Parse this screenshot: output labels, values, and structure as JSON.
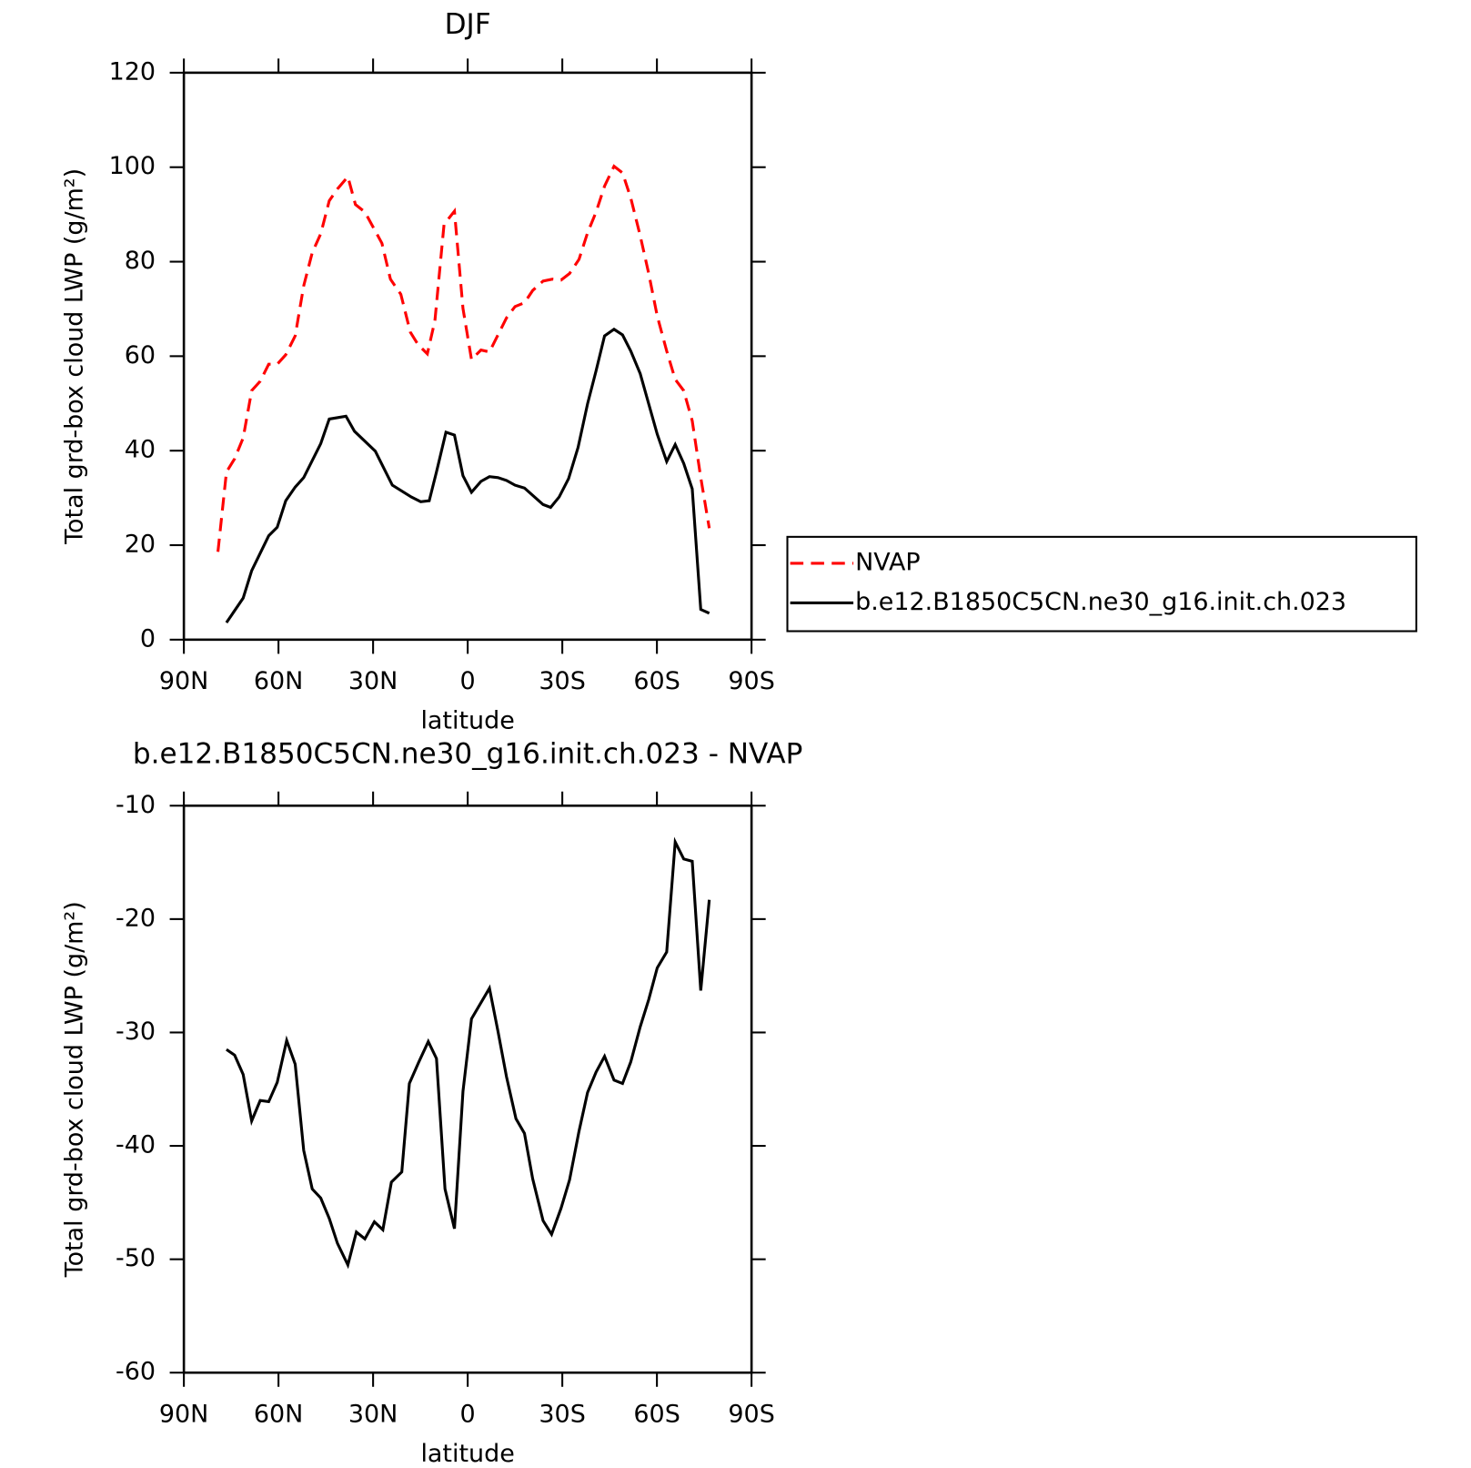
{
  "chart_data": [
    {
      "type": "line",
      "title": "DJF",
      "xlabel": "latitude",
      "ylabel": "Total grd-box cloud LWP (g/m²)",
      "xlim": [
        90,
        -90
      ],
      "xticks": [
        {
          "value": 90,
          "label": "90N"
        },
        {
          "value": 60,
          "label": "60N"
        },
        {
          "value": 30,
          "label": "30N"
        },
        0,
        {
          "value": -30,
          "label": "30S"
        },
        {
          "value": -60,
          "label": "60S"
        },
        {
          "value": -90,
          "label": "90S"
        }
      ],
      "ylim": [
        0,
        120
      ],
      "yticks": [
        0,
        20,
        40,
        60,
        80,
        100,
        120
      ],
      "legend": "outside-right",
      "series": [
        {
          "name": "NVAP",
          "color": "#ff0000",
          "dash": true,
          "x": [
            79.2,
            76.5,
            73.9,
            71.2,
            68.5,
            65.8,
            63.1,
            60.4,
            57.7,
            54.7,
            52.0,
            49.3,
            46.6,
            43.9,
            41.3,
            38.0,
            35.6,
            32.6,
            27.2,
            24.5,
            21.2,
            18.2,
            15.8,
            12.8,
            10.4,
            7.5,
            4.2,
            1.5,
            -1.2,
            -4.2,
            -6.9,
            -12.3,
            -15.0,
            -18.0,
            -20.6,
            -23.9,
            -26.9,
            -29.6,
            -32.3,
            -35.3,
            -38.0,
            -40.7,
            -43.4,
            -46.4,
            -49.1,
            -51.7,
            -54.7,
            -57.4,
            -60.1,
            -63.1,
            -65.8,
            -68.5,
            -71.2,
            -73.9,
            -76.6
          ],
          "values": [
            18.6,
            35.5,
            38.3,
            42.7,
            52.7,
            54.7,
            58.3,
            58.3,
            60.3,
            64.3,
            74.9,
            81.9,
            85.9,
            92.9,
            95.4,
            98,
            92.1,
            90.5,
            83.9,
            76.3,
            73.1,
            65.1,
            62.5,
            60.5,
            67.5,
            87.9,
            90.7,
            70.1,
            59.3,
            61.3,
            60.9,
            68.1,
            70.5,
            71.3,
            73.9,
            75.9,
            76.3,
            76.1,
            77.5,
            80.5,
            86.1,
            90.5,
            96.0,
            100.2,
            98.8,
            93.5,
            85.5,
            77.5,
            68.5,
            61.1,
            55.1,
            52.7,
            46.3,
            34.3,
            23.6
          ]
        },
        {
          "name": "b.e12.B1850C5CN.ne30_g16.init.ch.023",
          "color": "#000000",
          "dash": false,
          "x": [
            76.5,
            71.2,
            68.5,
            63.1,
            60.4,
            57.7,
            54.7,
            52.0,
            46.6,
            43.9,
            38.6,
            35.9,
            29.3,
            23.9,
            17.9,
            14.9,
            12.2,
            9.9,
            6.9,
            4.2,
            1.5,
            -1.2,
            -4.2,
            -6.9,
            -9.6,
            -12.3,
            -15.0,
            -18.0,
            -23.9,
            -26.3,
            -29.0,
            -32.0,
            -35.0,
            -38.0,
            -40.7,
            -43.4,
            -46.4,
            -49.1,
            -51.7,
            -54.7,
            -57.4,
            -60.1,
            -63.1,
            -65.8,
            -68.5,
            -71.2,
            -73.9,
            -76.6
          ],
          "values": [
            3.6,
            8.8,
            14.6,
            22,
            23.8,
            29.4,
            32.3,
            34.3,
            41.5,
            46.7,
            47.3,
            44.1,
            39.9,
            32.7,
            30.2,
            29.2,
            29.4,
            35.5,
            43.9,
            43.3,
            34.7,
            31.2,
            33.5,
            34.5,
            34.3,
            33.7,
            32.7,
            32.1,
            28.6,
            28.0,
            30.2,
            34.1,
            40.7,
            49.9,
            56.9,
            64.3,
            65.7,
            64.5,
            61.1,
            56.3,
            49.9,
            43.5,
            37.7,
            41.3,
            37.3,
            31.9,
            6.4,
            5.6
          ]
        }
      ]
    },
    {
      "type": "line",
      "title": "b.e12.B1850C5CN.ne30_g16.init.ch.023 - NVAP",
      "xlabel": "latitude",
      "ylabel": "Total grd-box cloud LWP (g/m²)",
      "xlim": [
        90,
        -90
      ],
      "xticks": [
        {
          "value": 90,
          "label": "90N"
        },
        {
          "value": 60,
          "label": "60N"
        },
        {
          "value": 30,
          "label": "30N"
        },
        0,
        {
          "value": -30,
          "label": "30S"
        },
        {
          "value": -60,
          "label": "60S"
        },
        {
          "value": -90,
          "label": "90S"
        }
      ],
      "ylim": [
        -60,
        -10
      ],
      "yticks": [
        -60,
        -50,
        -40,
        -30,
        -20,
        -10
      ],
      "color": "#000000",
      "x": [
        76.5,
        73.9,
        71.2,
        68.5,
        65.8,
        63.1,
        60.4,
        57.4,
        54.7,
        52.0,
        49.3,
        46.6,
        43.9,
        41.3,
        38.0,
        35.3,
        32.6,
        29.6,
        26.9,
        24.2,
        20.9,
        18.5,
        15.5,
        12.5,
        9.9,
        7.2,
        4.2,
        1.5,
        -1.2,
        -6.9,
        -9.6,
        -12.3,
        -15.3,
        -18.0,
        -20.6,
        -23.9,
        -26.6,
        -29.6,
        -32.3,
        -35.3,
        -38.0,
        -40.7,
        -43.4,
        -46.4,
        -49.1,
        -51.7,
        -54.7,
        -57.4,
        -60.1,
        -63.1,
        -65.8,
        -68.5,
        -71.2,
        -73.9,
        -76.6
      ],
      "values": [
        -31.5,
        -32.0,
        -33.7,
        -37.8,
        -36.0,
        -36.1,
        -34.4,
        -30.7,
        -32.8,
        -40.4,
        -43.8,
        -44.6,
        -46.4,
        -48.6,
        -50.5,
        -47.6,
        -48.2,
        -46.7,
        -47.4,
        -43.2,
        -42.3,
        -34.5,
        -32.6,
        -30.8,
        -32.3,
        -43.8,
        -47.3,
        -35.2,
        -28.8,
        -26.1,
        -29.9,
        -33.9,
        -37.6,
        -38.9,
        -42.9,
        -46.6,
        -47.8,
        -45.5,
        -43.0,
        -38.7,
        -35.3,
        -33.5,
        -32.1,
        -34.2,
        -34.5,
        -32.6,
        -29.5,
        -27.1,
        -24.3,
        -22.9,
        -13.2,
        -14.7,
        -14.9,
        -26.3,
        -18.3
      ]
    }
  ]
}
